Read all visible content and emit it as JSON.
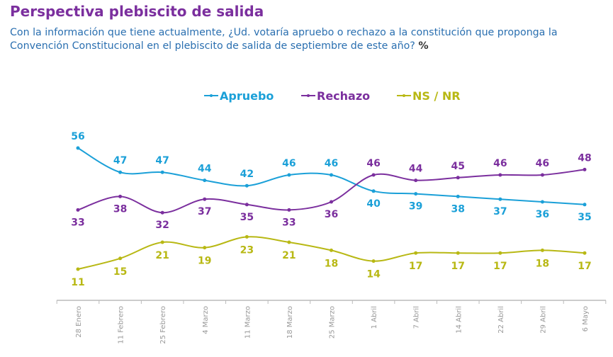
{
  "title": "Perspectiva plebiscito de salida",
  "subtitle": "Con la información que tiene actualmente, ¿Ud. votaría apruebo o rechazo a la constitución que proponga la Convención Constitucional en el plebiscito de salida de septiembre de este año?",
  "subtitle_unit": "%",
  "chart_data": {
    "type": "line",
    "categories": [
      "28 Enero",
      "11 Febrero",
      "25 Febrero",
      "4 Marzo",
      "11 Marzo",
      "18 Marzo",
      "25 Marzo",
      "1 Abril",
      "7 Abril",
      "14 Abril",
      "22 Abril",
      "29 Abril",
      "6 Mayo"
    ],
    "series": [
      {
        "name": "Apruebo",
        "color": "#1ba0d8",
        "values": [
          56,
          47,
          47,
          44,
          42,
          46,
          46,
          40,
          39,
          38,
          37,
          36,
          35
        ]
      },
      {
        "name": "Rechazo",
        "color": "#7b2f9e",
        "values": [
          33,
          38,
          32,
          37,
          35,
          33,
          36,
          46,
          44,
          45,
          46,
          46,
          48
        ]
      },
      {
        "name": "NS / NR",
        "color": "#b8b814",
        "values": [
          11,
          15,
          21,
          19,
          23,
          21,
          18,
          14,
          17,
          17,
          17,
          18,
          17
        ]
      }
    ],
    "legend": "top-center",
    "grid": false,
    "smooth": true
  }
}
